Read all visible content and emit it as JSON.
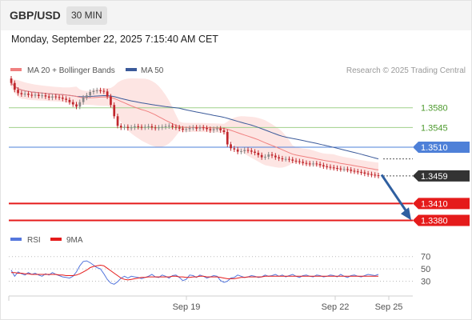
{
  "header": {
    "symbol": "GBP/USD",
    "timeframe": "30 MIN",
    "datetime": "Monday, September 22, 2025 7:15:40 AM CET"
  },
  "colors": {
    "price_up": "#888888",
    "price_down": "#c0272d",
    "ma20": "#f08080",
    "ma50": "#3b5a9a",
    "bollinger_fill": "#fde0de",
    "resistance": "#9fd08a",
    "pivot": "#4e80d8",
    "support": "#e51b1b",
    "current_price": "#333333",
    "rsi": "#5577dd",
    "rsi_ma": "#e51b1b",
    "arrow": "#2f5fa0"
  },
  "chart_data": [
    {
      "type": "candlestick",
      "title": "GBP/USD 30 MIN",
      "legend": [
        "MA 20 + Bollinger Bands",
        "MA 50"
      ],
      "attribution": "Research © 2025 Trading Central",
      "x_ticks": [
        "Sep 19",
        "Sep 22",
        "Sep 25"
      ],
      "y_range": [
        1.3365,
        1.3635
      ],
      "close_series": [
        1.3624,
        1.3612,
        1.3606,
        1.3604,
        1.3605,
        1.3603,
        1.3602,
        1.3603,
        1.3601,
        1.3602,
        1.36,
        1.3598,
        1.36,
        1.3599,
        1.3598,
        1.3596,
        1.3594,
        1.359,
        1.3586,
        1.3582,
        1.359,
        1.3598,
        1.3602,
        1.3608,
        1.361,
        1.3611,
        1.361,
        1.3609,
        1.36,
        1.3585,
        1.3565,
        1.3548,
        1.3545,
        1.3546,
        1.3544,
        1.3545,
        1.3547,
        1.3546,
        1.3545,
        1.3546,
        1.3547,
        1.3545,
        1.3544,
        1.3545,
        1.3546,
        1.3547,
        1.3548,
        1.3546,
        1.3545,
        1.3543,
        1.3541,
        1.3542,
        1.3544,
        1.3545,
        1.3543,
        1.3545,
        1.3544,
        1.3542,
        1.354,
        1.3542,
        1.3543,
        1.354,
        1.3537,
        1.3515,
        1.3508,
        1.3506,
        1.3502,
        1.3503,
        1.3505,
        1.3504,
        1.3502,
        1.35,
        1.3496,
        1.3492,
        1.3493,
        1.3497,
        1.3495,
        1.3492,
        1.349,
        1.3489,
        1.3489,
        1.3488,
        1.3486,
        1.3485,
        1.3484,
        1.3482,
        1.3481,
        1.348,
        1.3481,
        1.348,
        1.3478,
        1.3476,
        1.3475,
        1.3474,
        1.3473,
        1.3472,
        1.3471,
        1.3471,
        1.347,
        1.3468,
        1.3467,
        1.3466,
        1.3465,
        1.3463,
        1.3462,
        1.3461,
        1.346,
        1.3459
      ],
      "levels": [
        {
          "label": "1.3580",
          "value": 1.358,
          "role": "resistance"
        },
        {
          "label": "1.3545",
          "value": 1.3545,
          "role": "resistance"
        },
        {
          "label": "1.3510",
          "value": 1.351,
          "role": "pivot"
        },
        {
          "label": "1.3459",
          "value": 1.3459,
          "role": "last price"
        },
        {
          "label": "1.3410",
          "value": 1.341,
          "role": "support"
        },
        {
          "label": "1.3380",
          "value": 1.338,
          "role": "support"
        }
      ],
      "forecast_arrow": {
        "from": 1.3461,
        "to": 1.3386
      }
    },
    {
      "type": "line",
      "legend": [
        "RSI",
        "9MA"
      ],
      "y_ticks": [
        70,
        50,
        30
      ],
      "y_range": [
        15,
        80
      ],
      "series": [
        {
          "name": "RSI",
          "values": [
            48,
            38,
            45,
            42,
            40,
            44,
            41,
            43,
            40,
            38,
            42,
            40,
            44,
            41,
            39,
            37,
            36,
            35,
            38,
            45,
            55,
            62,
            63,
            60,
            56,
            52,
            50,
            42,
            33,
            27,
            25,
            29,
            35,
            38,
            35,
            38,
            37,
            36,
            34,
            36,
            38,
            41,
            37,
            36,
            40,
            38,
            35,
            39,
            40,
            36,
            31,
            33,
            40,
            39,
            36,
            40,
            38,
            35,
            37,
            39,
            38,
            31,
            28,
            30,
            35,
            36,
            40,
            38,
            36,
            37,
            39,
            38,
            36,
            37,
            40,
            38,
            39,
            41,
            38,
            40,
            37,
            39,
            41,
            38,
            36,
            39,
            40,
            38,
            37,
            40,
            39,
            37,
            38,
            40,
            39,
            37,
            41,
            38,
            36,
            39,
            40,
            38,
            37,
            39,
            41,
            40,
            39,
            41
          ]
        },
        {
          "name": "9MA",
          "values": [
            44,
            44,
            43,
            43,
            42,
            42,
            41,
            41,
            41,
            41,
            41,
            41,
            41,
            41,
            40,
            40,
            39,
            39,
            39,
            40,
            42,
            45,
            48,
            52,
            54,
            55,
            56,
            55,
            51,
            47,
            43,
            39,
            35,
            33,
            32,
            33,
            34,
            35,
            36,
            36,
            37,
            37,
            37,
            37,
            37,
            37,
            37,
            38,
            38,
            37,
            37,
            36,
            36,
            37,
            37,
            38,
            38,
            37,
            37,
            37,
            37,
            36,
            35,
            34,
            34,
            34,
            35,
            36,
            36,
            37,
            37,
            37,
            37,
            37,
            38,
            38,
            38,
            38,
            38,
            38,
            38,
            38,
            38,
            38,
            38,
            38,
            38,
            38,
            38,
            38,
            38,
            38,
            38,
            38,
            38,
            38,
            38,
            38,
            38,
            38,
            38,
            38,
            38,
            38,
            38,
            38,
            38,
            38
          ]
        }
      ]
    }
  ]
}
